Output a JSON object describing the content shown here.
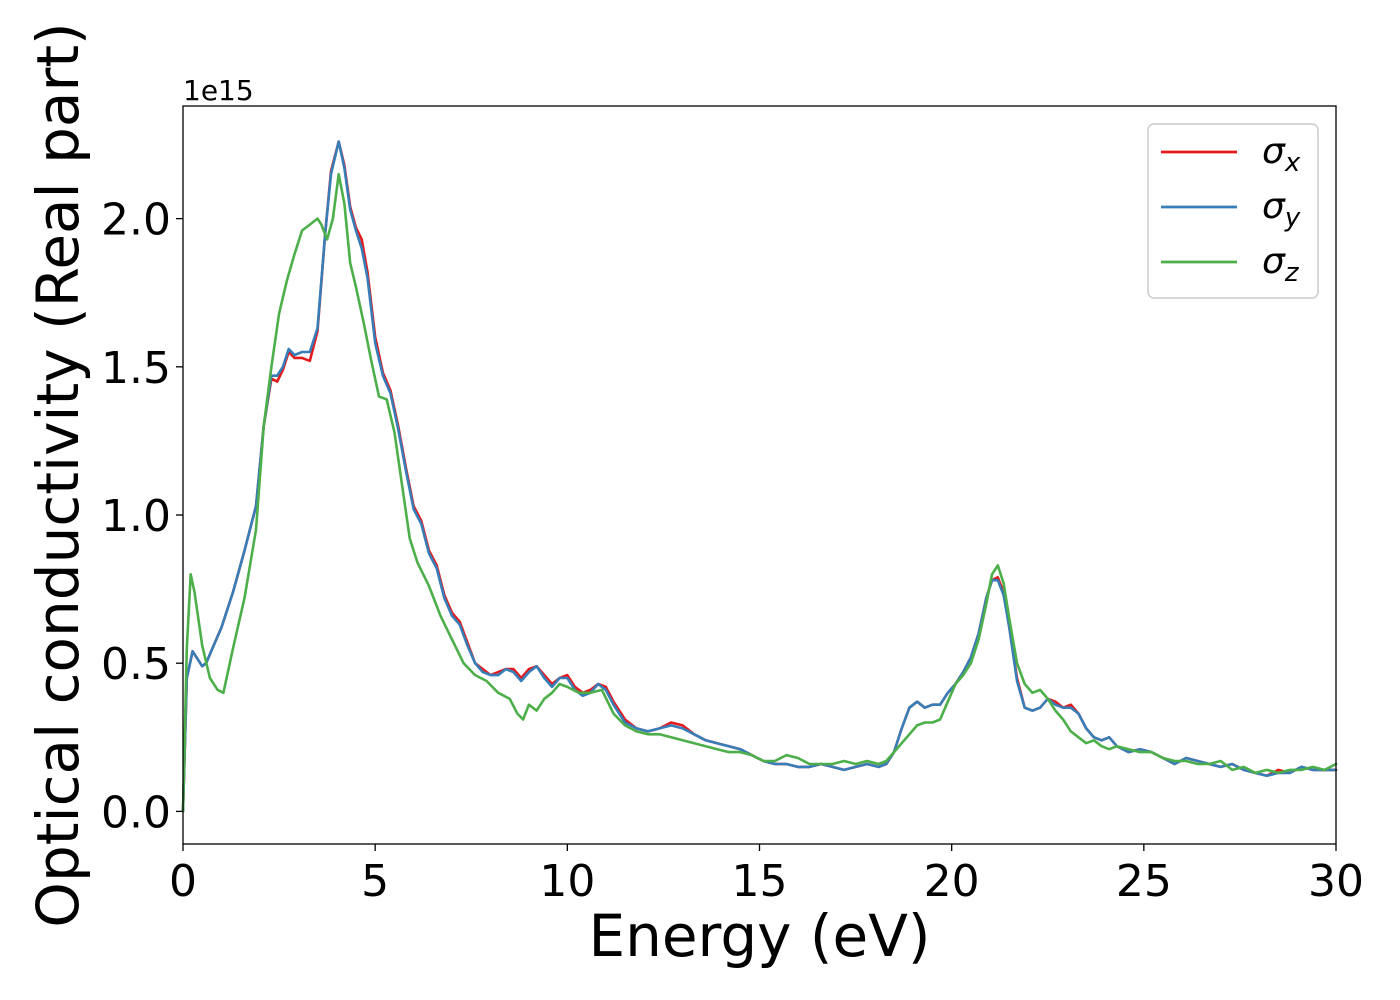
{
  "chart_data": {
    "type": "line",
    "title": "",
    "xlabel": "Energy (eV)",
    "ylabel": "Optical conductivity (Real part)",
    "y_offset_label": "1e15",
    "xlim": [
      0,
      30
    ],
    "ylim": [
      -0.11,
      2.38
    ],
    "xticks": [
      0,
      5,
      10,
      15,
      20,
      25,
      30
    ],
    "yticks": [
      0.0,
      0.5,
      1.0,
      1.5,
      2.0
    ],
    "xtick_labels": [
      "0",
      "5",
      "10",
      "15",
      "20",
      "25",
      "30"
    ],
    "ytick_labels": [
      "0.0",
      "0.5",
      "1.0",
      "1.5",
      "2.0"
    ],
    "grid": false,
    "legend_position": "top-right",
    "series": [
      {
        "name": "σx",
        "legend_base": "σ",
        "legend_sub": "x",
        "color": "#e41a1c",
        "x": [
          0,
          0.1,
          0.25,
          0.5,
          0.6,
          0.8,
          1.0,
          1.3,
          1.6,
          1.9,
          2.1,
          2.3,
          2.45,
          2.6,
          2.75,
          2.9,
          3.1,
          3.3,
          3.5,
          3.7,
          3.85,
          4.05,
          4.2,
          4.35,
          4.5,
          4.65,
          4.8,
          5.0,
          5.2,
          5.4,
          5.6,
          5.8,
          6.0,
          6.2,
          6.4,
          6.6,
          6.8,
          7.0,
          7.2,
          7.4,
          7.6,
          7.8,
          8.0,
          8.2,
          8.4,
          8.6,
          8.8,
          9.0,
          9.2,
          9.4,
          9.6,
          9.8,
          10.0,
          10.2,
          10.4,
          10.6,
          10.8,
          11.0,
          11.2,
          11.5,
          11.8,
          12.1,
          12.4,
          12.7,
          13.0,
          13.3,
          13.6,
          13.9,
          14.2,
          14.5,
          14.8,
          15.1,
          15.4,
          15.7,
          16.0,
          16.3,
          16.6,
          16.9,
          17.2,
          17.5,
          17.8,
          18.1,
          18.3,
          18.5,
          18.7,
          18.9,
          19.1,
          19.3,
          19.5,
          19.7,
          19.9,
          20.1,
          20.3,
          20.5,
          20.7,
          20.9,
          21.05,
          21.2,
          21.35,
          21.5,
          21.7,
          21.9,
          22.1,
          22.3,
          22.5,
          22.7,
          22.9,
          23.1,
          23.3,
          23.5,
          23.7,
          23.9,
          24.1,
          24.3,
          24.6,
          24.9,
          25.2,
          25.5,
          25.8,
          26.1,
          26.4,
          26.7,
          27.0,
          27.3,
          27.6,
          27.9,
          28.2,
          28.5,
          28.8,
          29.1,
          29.4,
          29.7,
          30.0
        ],
        "y": [
          0.0,
          0.45,
          0.54,
          0.49,
          0.5,
          0.56,
          0.62,
          0.74,
          0.88,
          1.03,
          1.3,
          1.46,
          1.45,
          1.49,
          1.55,
          1.53,
          1.53,
          1.52,
          1.62,
          1.95,
          2.16,
          2.26,
          2.18,
          2.04,
          1.97,
          1.93,
          1.82,
          1.6,
          1.48,
          1.42,
          1.3,
          1.16,
          1.03,
          0.98,
          0.88,
          0.83,
          0.73,
          0.67,
          0.64,
          0.57,
          0.5,
          0.48,
          0.46,
          0.47,
          0.48,
          0.48,
          0.45,
          0.48,
          0.49,
          0.46,
          0.43,
          0.45,
          0.46,
          0.42,
          0.4,
          0.41,
          0.43,
          0.42,
          0.37,
          0.31,
          0.28,
          0.27,
          0.28,
          0.3,
          0.29,
          0.26,
          0.24,
          0.23,
          0.22,
          0.21,
          0.19,
          0.17,
          0.16,
          0.16,
          0.15,
          0.15,
          0.16,
          0.15,
          0.14,
          0.15,
          0.16,
          0.15,
          0.16,
          0.2,
          0.28,
          0.35,
          0.37,
          0.35,
          0.36,
          0.36,
          0.4,
          0.43,
          0.47,
          0.52,
          0.6,
          0.72,
          0.78,
          0.79,
          0.74,
          0.62,
          0.45,
          0.35,
          0.34,
          0.35,
          0.38,
          0.37,
          0.35,
          0.36,
          0.33,
          0.28,
          0.25,
          0.24,
          0.25,
          0.22,
          0.2,
          0.21,
          0.2,
          0.18,
          0.16,
          0.18,
          0.17,
          0.16,
          0.15,
          0.16,
          0.14,
          0.13,
          0.12,
          0.14,
          0.13,
          0.15,
          0.14,
          0.14,
          0.14
        ]
      },
      {
        "name": "σy",
        "legend_base": "σ",
        "legend_sub": "y",
        "color": "#377eb8",
        "x": [
          0,
          0.1,
          0.25,
          0.5,
          0.6,
          0.8,
          1.0,
          1.3,
          1.6,
          1.9,
          2.1,
          2.3,
          2.45,
          2.6,
          2.75,
          2.9,
          3.1,
          3.3,
          3.5,
          3.7,
          3.85,
          4.05,
          4.2,
          4.35,
          4.5,
          4.65,
          4.8,
          5.0,
          5.2,
          5.4,
          5.6,
          5.8,
          6.0,
          6.2,
          6.4,
          6.6,
          6.8,
          7.0,
          7.2,
          7.4,
          7.6,
          7.8,
          8.0,
          8.2,
          8.4,
          8.6,
          8.8,
          9.0,
          9.2,
          9.4,
          9.6,
          9.8,
          10.0,
          10.2,
          10.4,
          10.6,
          10.8,
          11.0,
          11.2,
          11.5,
          11.8,
          12.1,
          12.4,
          12.7,
          13.0,
          13.3,
          13.6,
          13.9,
          14.2,
          14.5,
          14.8,
          15.1,
          15.4,
          15.7,
          16.0,
          16.3,
          16.6,
          16.9,
          17.2,
          17.5,
          17.8,
          18.1,
          18.3,
          18.5,
          18.7,
          18.9,
          19.1,
          19.3,
          19.5,
          19.7,
          19.9,
          20.1,
          20.3,
          20.5,
          20.7,
          20.9,
          21.05,
          21.2,
          21.35,
          21.5,
          21.7,
          21.9,
          22.1,
          22.3,
          22.5,
          22.7,
          22.9,
          23.1,
          23.3,
          23.5,
          23.7,
          23.9,
          24.1,
          24.3,
          24.6,
          24.9,
          25.2,
          25.5,
          25.8,
          26.1,
          26.4,
          26.7,
          27.0,
          27.3,
          27.6,
          27.9,
          28.2,
          28.5,
          28.8,
          29.1,
          29.4,
          29.7,
          30.0
        ],
        "y": [
          0.0,
          0.45,
          0.54,
          0.49,
          0.5,
          0.56,
          0.62,
          0.74,
          0.88,
          1.03,
          1.3,
          1.47,
          1.47,
          1.5,
          1.56,
          1.54,
          1.55,
          1.55,
          1.63,
          1.95,
          2.15,
          2.26,
          2.17,
          2.03,
          1.96,
          1.9,
          1.8,
          1.58,
          1.47,
          1.41,
          1.29,
          1.15,
          1.02,
          0.97,
          0.87,
          0.82,
          0.72,
          0.66,
          0.63,
          0.56,
          0.5,
          0.47,
          0.46,
          0.46,
          0.48,
          0.47,
          0.44,
          0.47,
          0.49,
          0.45,
          0.42,
          0.45,
          0.45,
          0.41,
          0.39,
          0.4,
          0.43,
          0.41,
          0.36,
          0.3,
          0.28,
          0.27,
          0.28,
          0.29,
          0.28,
          0.26,
          0.24,
          0.23,
          0.22,
          0.21,
          0.19,
          0.17,
          0.16,
          0.16,
          0.15,
          0.15,
          0.16,
          0.15,
          0.14,
          0.15,
          0.16,
          0.15,
          0.16,
          0.2,
          0.28,
          0.35,
          0.37,
          0.35,
          0.36,
          0.36,
          0.4,
          0.43,
          0.47,
          0.52,
          0.6,
          0.72,
          0.78,
          0.78,
          0.73,
          0.62,
          0.44,
          0.35,
          0.34,
          0.35,
          0.38,
          0.36,
          0.35,
          0.35,
          0.33,
          0.28,
          0.25,
          0.24,
          0.25,
          0.22,
          0.2,
          0.21,
          0.2,
          0.18,
          0.16,
          0.18,
          0.17,
          0.16,
          0.15,
          0.16,
          0.14,
          0.13,
          0.12,
          0.13,
          0.13,
          0.15,
          0.14,
          0.14,
          0.14
        ]
      },
      {
        "name": "σz",
        "legend_base": "σ",
        "legend_sub": "z",
        "color": "#4daf4a",
        "x": [
          0,
          0.1,
          0.2,
          0.3,
          0.5,
          0.7,
          0.9,
          1.05,
          1.3,
          1.6,
          1.9,
          2.1,
          2.3,
          2.5,
          2.7,
          2.9,
          3.1,
          3.3,
          3.5,
          3.6,
          3.75,
          3.9,
          4.05,
          4.2,
          4.35,
          4.5,
          4.7,
          4.9,
          5.1,
          5.3,
          5.5,
          5.7,
          5.9,
          6.1,
          6.4,
          6.7,
          7.0,
          7.3,
          7.6,
          7.9,
          8.2,
          8.5,
          8.7,
          8.85,
          9.0,
          9.2,
          9.4,
          9.6,
          9.8,
          10.0,
          10.3,
          10.6,
          10.9,
          11.2,
          11.5,
          11.8,
          12.1,
          12.4,
          12.7,
          13.0,
          13.3,
          13.6,
          13.9,
          14.2,
          14.5,
          14.8,
          15.1,
          15.4,
          15.7,
          16.0,
          16.3,
          16.6,
          16.9,
          17.2,
          17.5,
          17.8,
          18.1,
          18.3,
          18.5,
          18.7,
          18.9,
          19.1,
          19.3,
          19.5,
          19.7,
          19.9,
          20.1,
          20.3,
          20.5,
          20.7,
          20.9,
          21.05,
          21.2,
          21.35,
          21.5,
          21.7,
          21.9,
          22.1,
          22.3,
          22.5,
          22.7,
          22.9,
          23.1,
          23.3,
          23.5,
          23.7,
          23.9,
          24.1,
          24.3,
          24.6,
          24.9,
          25.2,
          25.5,
          25.8,
          26.1,
          26.4,
          26.7,
          27.0,
          27.3,
          27.6,
          27.9,
          28.2,
          28.5,
          28.8,
          29.1,
          29.4,
          29.7,
          30.0
        ],
        "y": [
          0.0,
          0.55,
          0.8,
          0.74,
          0.56,
          0.45,
          0.41,
          0.4,
          0.55,
          0.72,
          0.95,
          1.3,
          1.5,
          1.68,
          1.79,
          1.88,
          1.96,
          1.98,
          2.0,
          1.98,
          1.93,
          2.0,
          2.15,
          2.05,
          1.85,
          1.77,
          1.65,
          1.52,
          1.4,
          1.39,
          1.28,
          1.1,
          0.92,
          0.84,
          0.76,
          0.66,
          0.58,
          0.5,
          0.46,
          0.44,
          0.4,
          0.38,
          0.33,
          0.31,
          0.36,
          0.34,
          0.38,
          0.4,
          0.43,
          0.42,
          0.4,
          0.4,
          0.41,
          0.33,
          0.29,
          0.27,
          0.26,
          0.26,
          0.25,
          0.24,
          0.23,
          0.22,
          0.21,
          0.2,
          0.2,
          0.19,
          0.17,
          0.17,
          0.19,
          0.18,
          0.16,
          0.16,
          0.16,
          0.17,
          0.16,
          0.17,
          0.16,
          0.17,
          0.2,
          0.23,
          0.26,
          0.29,
          0.3,
          0.3,
          0.31,
          0.37,
          0.43,
          0.46,
          0.5,
          0.58,
          0.7,
          0.8,
          0.83,
          0.77,
          0.65,
          0.5,
          0.43,
          0.4,
          0.41,
          0.38,
          0.34,
          0.31,
          0.27,
          0.25,
          0.23,
          0.24,
          0.22,
          0.21,
          0.22,
          0.21,
          0.2,
          0.2,
          0.18,
          0.17,
          0.17,
          0.16,
          0.16,
          0.17,
          0.14,
          0.15,
          0.13,
          0.14,
          0.13,
          0.14,
          0.14,
          0.15,
          0.14,
          0.16
        ]
      }
    ]
  }
}
